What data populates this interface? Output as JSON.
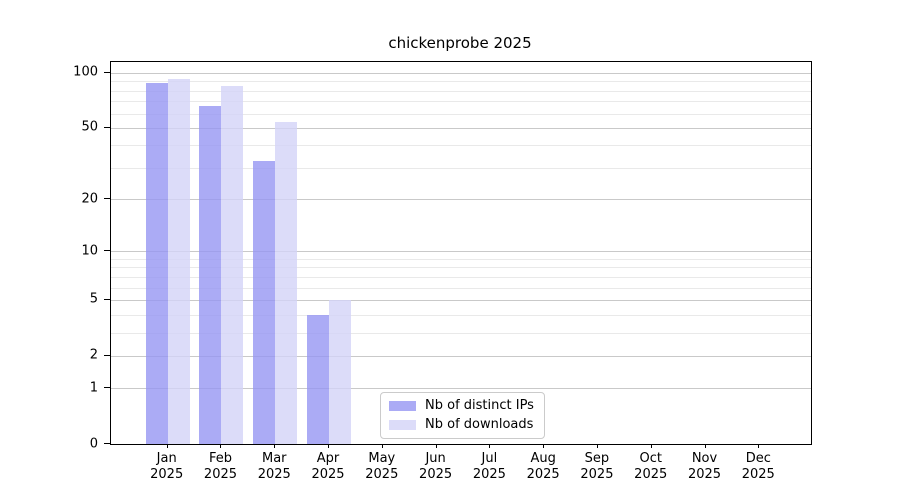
{
  "title": "chickenprobe 2025",
  "chart_data": {
    "type": "bar",
    "title": "chickenprobe 2025",
    "x_categories": [
      "Jan",
      "Feb",
      "Mar",
      "Apr",
      "May",
      "Jun",
      "Jul",
      "Aug",
      "Sep",
      "Oct",
      "Nov",
      "Dec"
    ],
    "x_year": "2025",
    "series": [
      {
        "name": "Nb of distinct IPs",
        "color": "rgba(150,150,243,0.8)",
        "values": [
          88,
          66,
          33,
          4,
          0,
          0,
          0,
          0,
          0,
          0,
          0,
          0
        ]
      },
      {
        "name": "Nb of downloads",
        "color": "rgba(211,211,247,0.8)",
        "values": [
          93,
          85,
          54,
          5,
          0,
          0,
          0,
          0,
          0,
          0,
          0,
          0
        ]
      }
    ],
    "yscale": "log1p",
    "ylim": [
      0,
      114.8
    ],
    "major_yticks": [
      0,
      1,
      2,
      5,
      10,
      20,
      50,
      100
    ],
    "minor_yticks": [
      3,
      4,
      6,
      7,
      8,
      9,
      30,
      40,
      60,
      70,
      80,
      90
    ],
    "grid": true,
    "legend": {
      "position": "lower center",
      "entries": [
        "Nb of distinct IPs",
        "Nb of downloads"
      ]
    }
  },
  "colors": {
    "major_grid": "#c9c9c9",
    "minor_grid": "#e9e9e9",
    "spine": "#000000",
    "text": "#000000"
  }
}
